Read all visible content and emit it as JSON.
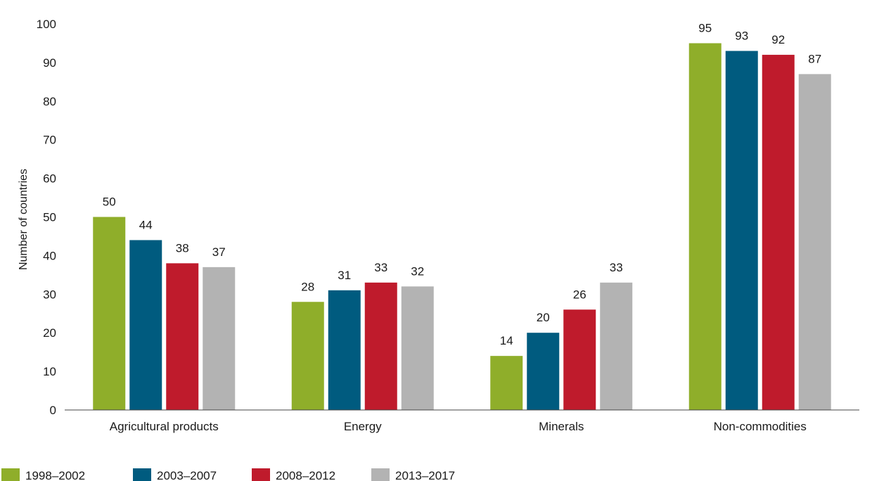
{
  "chart_data": {
    "type": "bar",
    "title": "",
    "xlabel": "",
    "ylabel": "Number of countries",
    "ylim": [
      0,
      100
    ],
    "yticks": [
      0,
      10,
      20,
      30,
      40,
      50,
      60,
      70,
      80,
      90,
      100
    ],
    "grid": false,
    "legend_position": "bottom-left",
    "categories": [
      "Agricultural products",
      "Energy",
      "Minerals",
      "Non-commodities"
    ],
    "series": [
      {
        "name": "1998–2002",
        "color": "#8fae2a",
        "values": [
          50,
          28,
          14,
          95
        ]
      },
      {
        "name": "2003–2007",
        "color": "#005b7f",
        "values": [
          44,
          31,
          20,
          93
        ]
      },
      {
        "name": "2008–2012",
        "color": "#bf1b2c",
        "values": [
          38,
          33,
          26,
          92
        ]
      },
      {
        "name": "2013–2017",
        "color": "#b3b3b3",
        "values": [
          37,
          32,
          33,
          87
        ]
      }
    ]
  }
}
